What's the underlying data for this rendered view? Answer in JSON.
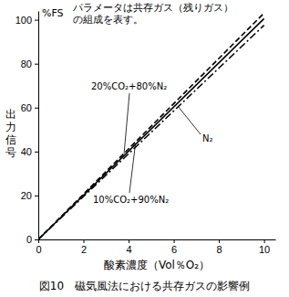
{
  "chart_data": {
    "type": "line",
    "title": "図10　磁気風法における共存ガスの影響例",
    "xlabel": "酸素濃度（Vol％O₂）",
    "ylabel": "出力信号",
    "y_unit_label": "%FS",
    "annotations": [
      "パラメータは共存ガス（残りガス）",
      "の組成を表す。"
    ],
    "x": [
      0,
      10
    ],
    "series": [
      {
        "name": "20%CO₂+80%N₂",
        "color": "#000000",
        "line_style": "dashed",
        "values": [
          0,
          103
        ]
      },
      {
        "name": "10%CO₂+90%N₂",
        "color": "#000000",
        "line_style": "solid",
        "values": [
          0,
          100.5
        ]
      },
      {
        "name": "N₂",
        "color": "#000000",
        "line_style": "dashdot",
        "values": [
          0,
          97.5
        ]
      }
    ],
    "xlim": [
      0,
      10.5
    ],
    "xticks": [
      0,
      2,
      4,
      6,
      8,
      10
    ],
    "ylim": [
      0,
      104
    ],
    "yticks": [
      0,
      20,
      40,
      60,
      80,
      100
    ],
    "grid": false
  }
}
